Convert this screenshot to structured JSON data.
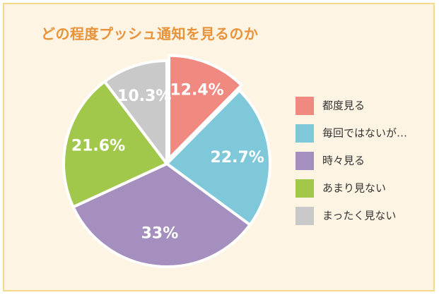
{
  "chart_data": {
    "type": "pie",
    "title": "どの程度プッシュ通知を見るのか",
    "slices": [
      {
        "name": "都度見る",
        "value": 12.4,
        "label": "12.4%",
        "color": "#f0897f"
      },
      {
        "name": "毎回ではないが…",
        "value": 22.7,
        "label": "22.7%",
        "color": "#7ec8da"
      },
      {
        "name": "時々見る",
        "value": 33,
        "label": "33%",
        "color": "#a48fbe"
      },
      {
        "name": "あまり見ない",
        "value": 21.6,
        "label": "21.6%",
        "color": "#a2c84b"
      },
      {
        "name": "まったく見ない",
        "value": 10.3,
        "label": "10.3%",
        "color": "#c9c9c9"
      }
    ],
    "legend_position": "right"
  }
}
